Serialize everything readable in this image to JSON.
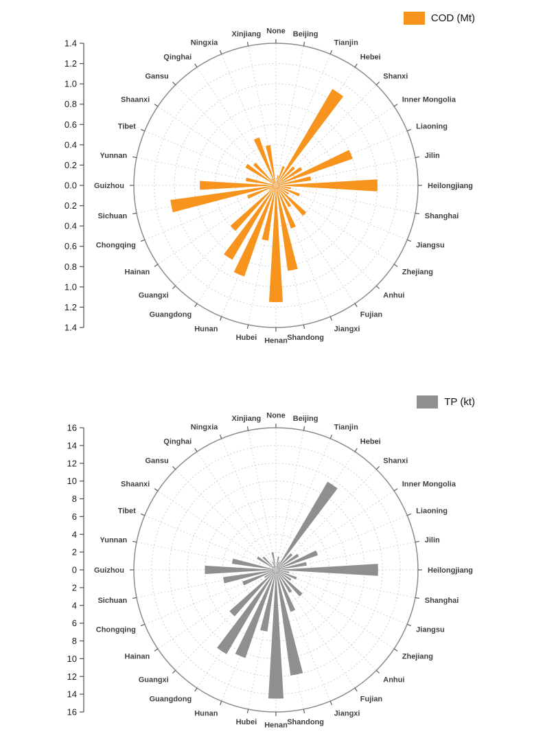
{
  "accent_colors": {
    "cod_orange": "#F7941E",
    "tp_gray": "#8F8F8F"
  },
  "chart_data": [
    {
      "type": "bar",
      "subtype": "polar-bar-rose",
      "title": "",
      "legend": "COD (Mt)",
      "color": "#F7941E",
      "rmax": 1.4,
      "rtick_step": 0.2,
      "grid": "dotted-concentric-circles-and-spokes",
      "legend_position": "top-right",
      "radial_tick_labels": [
        "1.4",
        "1.2",
        "1.0",
        "0.8",
        "0.6",
        "0.4",
        "0.2",
        "0.0",
        "0.2",
        "0.4",
        "0.6",
        "0.8",
        "1.0",
        "1.2",
        "1.4"
      ],
      "categories": [
        "None",
        "Beijing",
        "Tianjin",
        "Hebei",
        "Shanxi",
        "Inner Mongolia",
        "Liaoning",
        "Jilin",
        "Heilongjiang",
        "Shanghai",
        "Jiangsu",
        "Zhejiang",
        "Anhui",
        "Fujian",
        "Jiangxi",
        "Shandong",
        "Henan",
        "Hubei",
        "Hunan",
        "Guangdong",
        "Guangxi",
        "Hainan",
        "Chongqing",
        "Sichuan",
        "Guizhou",
        "Yunnan",
        "Tibet",
        "Shaanxi",
        "Gansu",
        "Qinghai",
        "Ningxia",
        "Xinjiang"
      ],
      "values": [
        0.02,
        0.1,
        0.2,
        1.1,
        0.25,
        0.3,
        0.8,
        0.35,
        1.0,
        0.15,
        0.25,
        0.15,
        0.4,
        0.25,
        0.45,
        0.85,
        1.15,
        0.55,
        0.95,
        0.85,
        0.6,
        0.08,
        0.3,
        1.05,
        0.75,
        0.3,
        0.03,
        0.35,
        0.3,
        0.08,
        0.5,
        0.4
      ]
    },
    {
      "type": "bar",
      "subtype": "polar-bar-rose",
      "title": "",
      "legend": "TP (kt)",
      "color": "#8F8F8F",
      "rmax": 16,
      "rtick_step": 2,
      "grid": "dotted-concentric-circles-and-spokes",
      "legend_position": "top-right",
      "radial_tick_labels": [
        "16",
        "14",
        "12",
        "10",
        "8",
        "6",
        "4",
        "2",
        "0",
        "2",
        "4",
        "6",
        "8",
        "10",
        "12",
        "14",
        "16"
      ],
      "categories": [
        "None",
        "Beijing",
        "Tianjin",
        "Hebei",
        "Shanxi",
        "Inner Mongolia",
        "Liaoning",
        "Jilin",
        "Heilongjiang",
        "Shanghai",
        "Jiangsu",
        "Zhejiang",
        "Anhui",
        "Fujian",
        "Jiangxi",
        "Shandong",
        "Henan",
        "Hubei",
        "Hunan",
        "Guangdong",
        "Guangxi",
        "Hainan",
        "Chongqing",
        "Sichuan",
        "Guizhou",
        "Yunnan",
        "Tibet",
        "Shaanxi",
        "Gansu",
        "Qinghai",
        "Ningxia",
        "Xinjiang"
      ],
      "values": [
        0.2,
        1.5,
        1.0,
        11.5,
        2.5,
        3.0,
        5.0,
        3.5,
        11.5,
        1.5,
        2.5,
        2.0,
        4.0,
        3.0,
        5.0,
        12.0,
        14.5,
        7.0,
        10.5,
        11.0,
        7.0,
        1.5,
        4.0,
        6.0,
        8.0,
        5.0,
        0.2,
        2.5,
        2.0,
        0.5,
        1.0,
        2.0
      ]
    }
  ]
}
